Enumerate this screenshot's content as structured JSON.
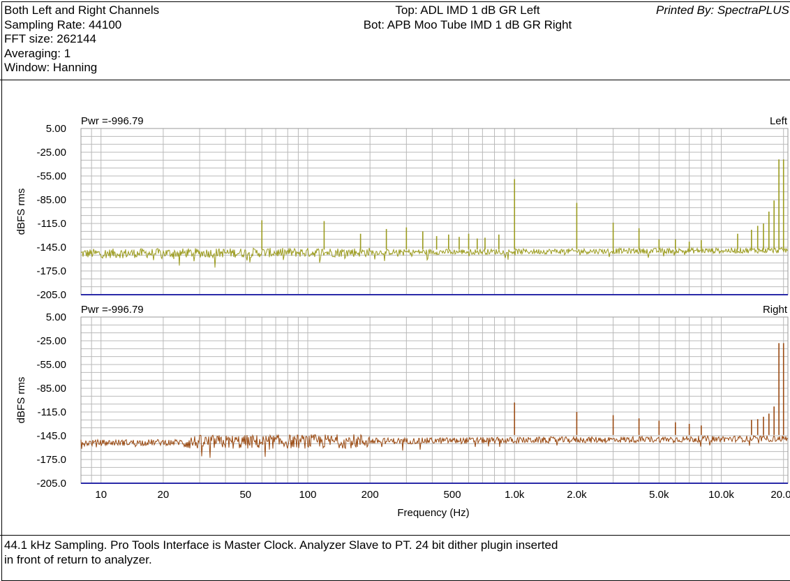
{
  "header": {
    "left_lines": [
      "Both Left and Right Channels",
      "Sampling Rate: 44100",
      "FFT size: 262144",
      "Averaging: 1",
      "Window: Hanning"
    ],
    "center_lines": [
      "Top: ADL IMD 1 dB GR Left",
      "Bot: APB Moo Tube IMD 1 dB GR Right"
    ],
    "printed_by": "Printed By: SpectraPLUS"
  },
  "footer": {
    "lines": [
      "44.1 kHz Sampling. Pro Tools Interface is Master Clock. Analyzer Slave to PT. 24 bit dither plugin inserted",
      "in front of return to analyzer."
    ]
  },
  "colors": {
    "top_trace": "#9b9b1e",
    "bottom_trace": "#9a4a12",
    "grid": "#b9b9b9",
    "baseline": "#2a2aa8"
  },
  "chart_data": [
    {
      "type": "line",
      "panel": "top",
      "power_label": "Pwr =-996.79",
      "channel_label": "Left",
      "ylabel": "dBFS rms",
      "yticks": [
        "5.00",
        "-25.00",
        "-55.00",
        "-85.00",
        "-115.0",
        "-145.0",
        "-175.0",
        "-205.0"
      ],
      "ylim": [
        -205,
        5
      ],
      "xlim": [
        8,
        21000
      ],
      "x_scale": "log",
      "noise_floor": -150,
      "peaks": [
        {
          "x": 60,
          "y": -111
        },
        {
          "x": 120,
          "y": -112
        },
        {
          "x": 180,
          "y": -128
        },
        {
          "x": 240,
          "y": -122
        },
        {
          "x": 300,
          "y": -120
        },
        {
          "x": 360,
          "y": -125
        },
        {
          "x": 420,
          "y": -131
        },
        {
          "x": 480,
          "y": -129
        },
        {
          "x": 540,
          "y": -132
        },
        {
          "x": 600,
          "y": -128
        },
        {
          "x": 660,
          "y": -134
        },
        {
          "x": 720,
          "y": -133
        },
        {
          "x": 840,
          "y": -129
        },
        {
          "x": 1000,
          "y": -59
        },
        {
          "x": 2000,
          "y": -89
        },
        {
          "x": 3000,
          "y": -114
        },
        {
          "x": 4000,
          "y": -121
        },
        {
          "x": 5000,
          "y": -135
        },
        {
          "x": 6000,
          "y": -135
        },
        {
          "x": 7000,
          "y": -138
        },
        {
          "x": 8000,
          "y": -136
        },
        {
          "x": 12000,
          "y": -128
        },
        {
          "x": 14000,
          "y": -123
        },
        {
          "x": 15000,
          "y": -118
        },
        {
          "x": 16000,
          "y": -115
        },
        {
          "x": 17000,
          "y": -100
        },
        {
          "x": 18000,
          "y": -86
        },
        {
          "x": 19000,
          "y": -34
        },
        {
          "x": 20000,
          "y": -34
        }
      ]
    },
    {
      "type": "line",
      "panel": "bottom",
      "power_label": "Pwr =-996.79",
      "channel_label": "Right",
      "ylabel": "dBFS rms",
      "xlabel": "Frequency (Hz)",
      "xtick_labels": [
        "10",
        "20",
        "50",
        "100",
        "200",
        "500",
        "1.0k",
        "2.0k",
        "5.0k",
        "10.0k",
        "20.0k"
      ],
      "xtick_values": [
        10,
        20,
        50,
        100,
        200,
        500,
        1000,
        2000,
        5000,
        10000,
        20000
      ],
      "yticks": [
        "5.00",
        "-25.00",
        "-55.00",
        "-85.00",
        "-115.0",
        "-145.0",
        "-175.0",
        "-205.0"
      ],
      "ylim": [
        -205,
        5
      ],
      "xlim": [
        8,
        21000
      ],
      "x_scale": "log",
      "noise_floor": -146,
      "peaks": [
        {
          "x": 1000,
          "y": -103
        },
        {
          "x": 2000,
          "y": -115
        },
        {
          "x": 3000,
          "y": -119
        },
        {
          "x": 4000,
          "y": -123
        },
        {
          "x": 5000,
          "y": -126
        },
        {
          "x": 6000,
          "y": -128
        },
        {
          "x": 7000,
          "y": -130
        },
        {
          "x": 8000,
          "y": -132
        },
        {
          "x": 14000,
          "y": -125
        },
        {
          "x": 15000,
          "y": -124
        },
        {
          "x": 16000,
          "y": -121
        },
        {
          "x": 17000,
          "y": -117
        },
        {
          "x": 18000,
          "y": -108
        },
        {
          "x": 19000,
          "y": -28
        },
        {
          "x": 20000,
          "y": -28
        }
      ]
    }
  ]
}
